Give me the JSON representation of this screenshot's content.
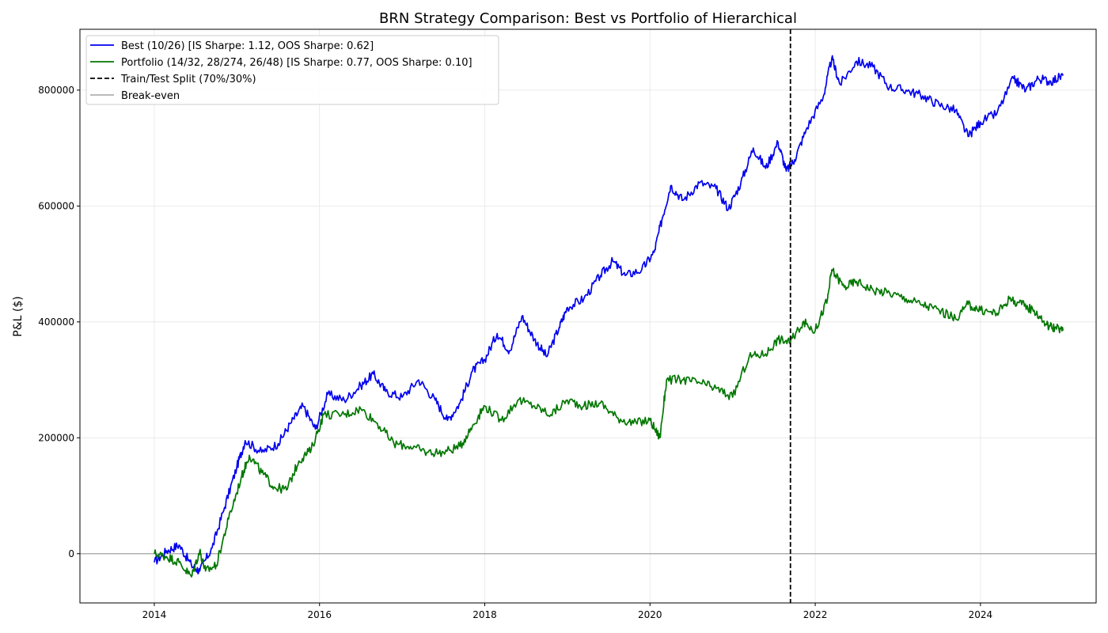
{
  "chart_data": {
    "type": "line",
    "title": "BRN Strategy Comparison: Best vs Portfolio of Hierarchical",
    "xlabel": "",
    "ylabel": "P&L ($)",
    "xlim": [
      2013.1,
      2025.4
    ],
    "ylim": [
      -85000,
      905000
    ],
    "x_ticks": [
      2014,
      2016,
      2018,
      2020,
      2022,
      2024
    ],
    "x_tick_labels": [
      "2014",
      "2016",
      "2018",
      "2020",
      "2022",
      "2024"
    ],
    "y_ticks": [
      0,
      200000,
      400000,
      600000,
      800000
    ],
    "y_tick_labels": [
      "0",
      "200000",
      "400000",
      "600000",
      "800000"
    ],
    "grid": true,
    "legend_position": "top-left",
    "split": {
      "x": 2021.7,
      "label": "Train/Test Split (70%/30%)",
      "color": "#000000",
      "style": "dashed"
    },
    "breakeven": {
      "y": 0,
      "label": "Break-even",
      "color": "#b0b0b0"
    },
    "series": [
      {
        "name": "Best (10/26) [IS Sharpe: 1.12, OOS Sharpe: 0.62]",
        "color": "#0000ee",
        "points": [
          [
            2014.0,
            -15000
          ],
          [
            2014.15,
            5000
          ],
          [
            2014.3,
            15000
          ],
          [
            2014.45,
            -20000
          ],
          [
            2014.55,
            -30000
          ],
          [
            2014.7,
            10000
          ],
          [
            2014.85,
            80000
          ],
          [
            2015.0,
            150000
          ],
          [
            2015.1,
            195000
          ],
          [
            2015.3,
            175000
          ],
          [
            2015.5,
            190000
          ],
          [
            2015.65,
            225000
          ],
          [
            2015.8,
            255000
          ],
          [
            2015.95,
            215000
          ],
          [
            2016.1,
            275000
          ],
          [
            2016.3,
            265000
          ],
          [
            2016.5,
            290000
          ],
          [
            2016.65,
            310000
          ],
          [
            2016.8,
            280000
          ],
          [
            2017.0,
            270000
          ],
          [
            2017.2,
            300000
          ],
          [
            2017.4,
            265000
          ],
          [
            2017.55,
            230000
          ],
          [
            2017.7,
            260000
          ],
          [
            2017.85,
            315000
          ],
          [
            2018.0,
            335000
          ],
          [
            2018.15,
            380000
          ],
          [
            2018.3,
            350000
          ],
          [
            2018.45,
            410000
          ],
          [
            2018.6,
            370000
          ],
          [
            2018.75,
            340000
          ],
          [
            2018.9,
            390000
          ],
          [
            2019.0,
            425000
          ],
          [
            2019.2,
            440000
          ],
          [
            2019.4,
            480000
          ],
          [
            2019.55,
            505000
          ],
          [
            2019.7,
            480000
          ],
          [
            2019.9,
            490000
          ],
          [
            2020.05,
            520000
          ],
          [
            2020.15,
            580000
          ],
          [
            2020.25,
            635000
          ],
          [
            2020.4,
            610000
          ],
          [
            2020.6,
            640000
          ],
          [
            2020.8,
            630000
          ],
          [
            2020.95,
            595000
          ],
          [
            2021.1,
            640000
          ],
          [
            2021.25,
            700000
          ],
          [
            2021.4,
            665000
          ],
          [
            2021.55,
            710000
          ],
          [
            2021.65,
            660000
          ],
          [
            2021.75,
            680000
          ],
          [
            2021.9,
            735000
          ],
          [
            2022.1,
            790000
          ],
          [
            2022.2,
            855000
          ],
          [
            2022.3,
            810000
          ],
          [
            2022.5,
            850000
          ],
          [
            2022.7,
            840000
          ],
          [
            2022.9,
            805000
          ],
          [
            2023.1,
            800000
          ],
          [
            2023.3,
            790000
          ],
          [
            2023.5,
            775000
          ],
          [
            2023.7,
            765000
          ],
          [
            2023.85,
            720000
          ],
          [
            2024.0,
            745000
          ],
          [
            2024.2,
            760000
          ],
          [
            2024.4,
            820000
          ],
          [
            2024.55,
            800000
          ],
          [
            2024.7,
            820000
          ],
          [
            2024.85,
            815000
          ],
          [
            2025.0,
            825000
          ]
        ]
      },
      {
        "name": "Portfolio (14/32, 28/274, 26/48) [IS Sharpe: 0.77, OOS Sharpe: 0.10]",
        "color": "#007700",
        "points": [
          [
            2014.0,
            0
          ],
          [
            2014.15,
            -5000
          ],
          [
            2014.3,
            -15000
          ],
          [
            2014.45,
            -40000
          ],
          [
            2014.55,
            5000
          ],
          [
            2014.62,
            -30000
          ],
          [
            2014.75,
            -20000
          ],
          [
            2014.9,
            60000
          ],
          [
            2015.05,
            130000
          ],
          [
            2015.15,
            170000
          ],
          [
            2015.3,
            140000
          ],
          [
            2015.45,
            115000
          ],
          [
            2015.6,
            110000
          ],
          [
            2015.75,
            160000
          ],
          [
            2015.9,
            180000
          ],
          [
            2016.05,
            240000
          ],
          [
            2016.3,
            240000
          ],
          [
            2016.5,
            250000
          ],
          [
            2016.7,
            225000
          ],
          [
            2016.9,
            190000
          ],
          [
            2017.1,
            185000
          ],
          [
            2017.3,
            175000
          ],
          [
            2017.5,
            175000
          ],
          [
            2017.7,
            185000
          ],
          [
            2017.85,
            220000
          ],
          [
            2018.0,
            255000
          ],
          [
            2018.2,
            230000
          ],
          [
            2018.4,
            265000
          ],
          [
            2018.6,
            255000
          ],
          [
            2018.8,
            240000
          ],
          [
            2019.0,
            265000
          ],
          [
            2019.2,
            255000
          ],
          [
            2019.4,
            260000
          ],
          [
            2019.6,
            235000
          ],
          [
            2019.8,
            225000
          ],
          [
            2020.0,
            230000
          ],
          [
            2020.12,
            200000
          ],
          [
            2020.2,
            300000
          ],
          [
            2020.4,
            300000
          ],
          [
            2020.6,
            295000
          ],
          [
            2020.8,
            285000
          ],
          [
            2021.0,
            270000
          ],
          [
            2021.2,
            340000
          ],
          [
            2021.4,
            345000
          ],
          [
            2021.55,
            370000
          ],
          [
            2021.7,
            365000
          ],
          [
            2021.85,
            400000
          ],
          [
            2022.0,
            385000
          ],
          [
            2022.15,
            440000
          ],
          [
            2022.2,
            490000
          ],
          [
            2022.35,
            460000
          ],
          [
            2022.5,
            470000
          ],
          [
            2022.7,
            455000
          ],
          [
            2022.9,
            450000
          ],
          [
            2023.1,
            440000
          ],
          [
            2023.3,
            430000
          ],
          [
            2023.5,
            420000
          ],
          [
            2023.7,
            405000
          ],
          [
            2023.85,
            430000
          ],
          [
            2024.0,
            420000
          ],
          [
            2024.2,
            415000
          ],
          [
            2024.35,
            440000
          ],
          [
            2024.5,
            430000
          ],
          [
            2024.65,
            420000
          ],
          [
            2024.8,
            395000
          ],
          [
            2024.9,
            390000
          ],
          [
            2025.0,
            385000
          ]
        ]
      }
    ],
    "legend": [
      {
        "label": "Best (10/26) [IS Sharpe: 1.12, OOS Sharpe: 0.62]",
        "color": "#0000ee",
        "style": "solid"
      },
      {
        "label": "Portfolio (14/32, 28/274, 26/48) [IS Sharpe: 0.77, OOS Sharpe: 0.10]",
        "color": "#007700",
        "style": "solid"
      },
      {
        "label": "Train/Test Split (70%/30%)",
        "color": "#000000",
        "style": "dashed"
      },
      {
        "label": "Break-even",
        "color": "#b0b0b0",
        "style": "solid"
      }
    ]
  }
}
